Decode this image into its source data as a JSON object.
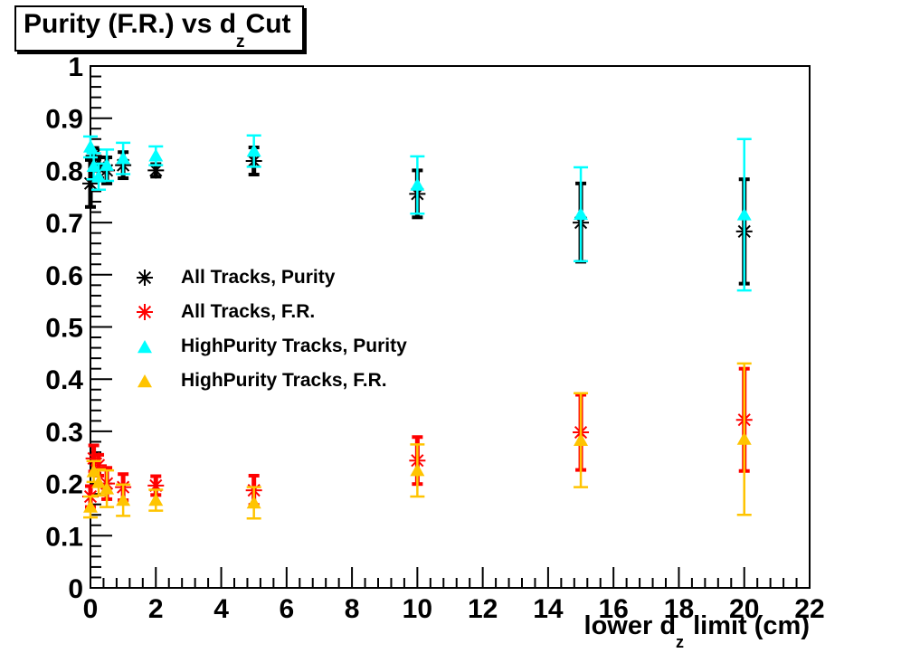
{
  "title": {
    "prefix": "Purity (F.R.) vs d",
    "subscript": "z",
    "suffix": "Cut",
    "full": "Purity (F.R.) vs d_z Cut"
  },
  "x_axis_title": {
    "prefix": "lower d",
    "subscript": "z",
    "suffix": " limit (cm)",
    "full": "lower d_z limit (cm)"
  },
  "chart_data": {
    "type": "scatter",
    "title": "Purity (F.R.) vs d_z Cut",
    "xlabel": "lower d_z limit (cm)",
    "ylabel": "",
    "xlim": [
      0,
      22
    ],
    "ylim": [
      0,
      1
    ],
    "x_major_ticks": [
      0,
      2,
      4,
      6,
      8,
      10,
      12,
      14,
      16,
      18,
      20,
      22
    ],
    "x_minor_step": 0.4,
    "y_major_ticks": [
      0,
      0.1,
      0.2,
      0.3,
      0.4,
      0.5,
      0.6,
      0.7,
      0.8,
      0.9,
      1
    ],
    "y_minor_step": 0.02,
    "grid": false,
    "legend_position": "inside-left-middle",
    "x": [
      0,
      0.1,
      0.25,
      0.5,
      1,
      2,
      5,
      10,
      15,
      20
    ],
    "series": [
      {
        "name": "All Tracks, Purity",
        "marker": "asterisk",
        "color": "#000000",
        "values": [
          0.775,
          0.828,
          0.805,
          0.8,
          0.81,
          0.8,
          0.818,
          0.755,
          0.7,
          0.683
        ],
        "errors": [
          0.045,
          0.015,
          0.02,
          0.025,
          0.025,
          0.012,
          0.026,
          0.045,
          0.075,
          0.1
        ]
      },
      {
        "name": "All Tracks, F.R.",
        "marker": "asterisk",
        "color": "#FF0000",
        "values": [
          0.175,
          0.248,
          0.235,
          0.2,
          0.193,
          0.196,
          0.187,
          0.244,
          0.298,
          0.322
        ],
        "errors": [
          0.02,
          0.025,
          0.02,
          0.03,
          0.025,
          0.018,
          0.028,
          0.045,
          0.072,
          0.098
        ]
      },
      {
        "name": "HighPurity Tracks, Purity",
        "marker": "triangle",
        "color": "#00FFFF",
        "values": [
          0.845,
          0.808,
          0.788,
          0.81,
          0.823,
          0.828,
          0.837,
          0.772,
          0.716,
          0.715
        ],
        "errors": [
          0.02,
          0.025,
          0.025,
          0.03,
          0.03,
          0.018,
          0.03,
          0.055,
          0.09,
          0.145
        ]
      },
      {
        "name": "HighPurity Tracks, F.R.",
        "marker": "triangle",
        "color": "#FFC400",
        "values": [
          0.155,
          0.223,
          0.202,
          0.19,
          0.168,
          0.168,
          0.163,
          0.225,
          0.283,
          0.285
        ],
        "errors": [
          0.02,
          0.02,
          0.025,
          0.035,
          0.03,
          0.02,
          0.03,
          0.05,
          0.09,
          0.145
        ]
      }
    ]
  }
}
